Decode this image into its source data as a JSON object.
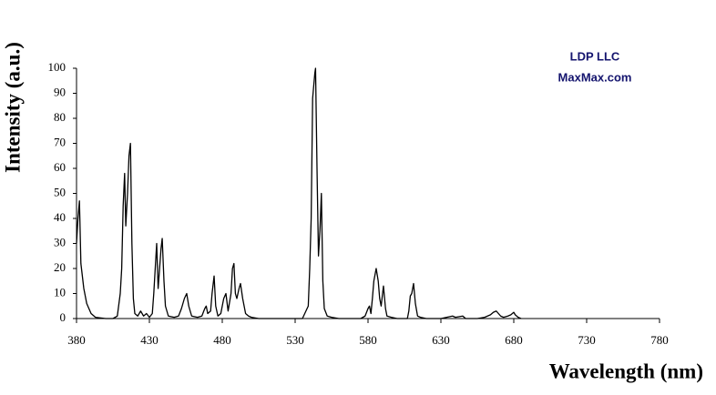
{
  "chart_data": {
    "type": "line",
    "x_label": "Wavelength (nm)",
    "y_label": "Intensity (a.u.)",
    "annotations": [
      "LDP LLC",
      "MaxMax.com"
    ],
    "color": "#000000",
    "x": [
      380,
      381,
      382,
      383,
      385,
      387,
      390,
      393,
      400,
      405,
      408,
      410,
      411,
      412,
      413,
      413.8,
      415,
      416,
      417,
      418,
      419,
      420,
      422,
      424,
      426,
      428,
      430,
      432,
      433,
      434,
      435,
      436,
      437,
      438,
      438.8,
      440,
      441,
      443,
      447,
      450,
      452,
      454,
      455.6,
      457,
      459,
      463,
      466,
      468,
      469,
      470,
      472,
      473,
      474.4,
      475.5,
      477,
      479,
      481,
      482.5,
      484,
      486,
      487,
      488,
      489,
      490,
      491.5,
      492.5,
      494,
      496,
      498,
      500,
      505,
      510,
      530,
      535,
      539,
      540,
      541,
      542,
      543.5,
      544,
      545,
      546,
      547,
      548,
      549,
      550,
      552,
      555,
      560,
      575,
      578,
      580,
      581,
      582,
      583,
      584,
      585.6,
      587,
      588,
      589,
      590.6,
      592,
      593,
      596,
      600,
      607,
      608,
      609,
      610,
      611.25,
      612.5,
      614,
      616,
      620,
      630,
      638,
      640,
      645,
      647,
      655,
      660,
      662,
      664,
      666,
      668,
      669.5,
      671,
      673,
      676,
      678,
      680,
      681,
      683,
      685
    ],
    "values": [
      30,
      40,
      47,
      22,
      12,
      6,
      2,
      0.5,
      0,
      0,
      1,
      10,
      20,
      45,
      58,
      37,
      50,
      65,
      70,
      30,
      8,
      2,
      1,
      3,
      1,
      2,
      0.5,
      2,
      10,
      20,
      30,
      12,
      20,
      28,
      32,
      15,
      5,
      1,
      0.5,
      1,
      4,
      8,
      10,
      5,
      1,
      0.5,
      1,
      4,
      5,
      2,
      3,
      10,
      17,
      5,
      1,
      2,
      8,
      10,
      3,
      10,
      20,
      22,
      10,
      8,
      12,
      14,
      8,
      2,
      1,
      0.5,
      0,
      0,
      0,
      0,
      5,
      20,
      40,
      88,
      98,
      100,
      60,
      25,
      35,
      50,
      15,
      4,
      1,
      0.5,
      0,
      0,
      1,
      4,
      5,
      2,
      8,
      15,
      20,
      15,
      8,
      5,
      13,
      4,
      1,
      0.5,
      0,
      0,
      3,
      9,
      10,
      14,
      6,
      1,
      0.5,
      0,
      0,
      1,
      0.5,
      1,
      0,
      0,
      0.5,
      1,
      1.5,
      2.5,
      3,
      2,
      1,
      0.5,
      1,
      1.5,
      2.5,
      1.5,
      0.5,
      0
    ],
    "xlim": [
      380,
      780
    ],
    "xticks": [
      380,
      430,
      480,
      530,
      580,
      630,
      680,
      730,
      780
    ],
    "ylim": [
      0,
      100
    ],
    "yticks": [
      0,
      10,
      20,
      30,
      40,
      50,
      60,
      70,
      80,
      90,
      100
    ],
    "grid": false
  }
}
